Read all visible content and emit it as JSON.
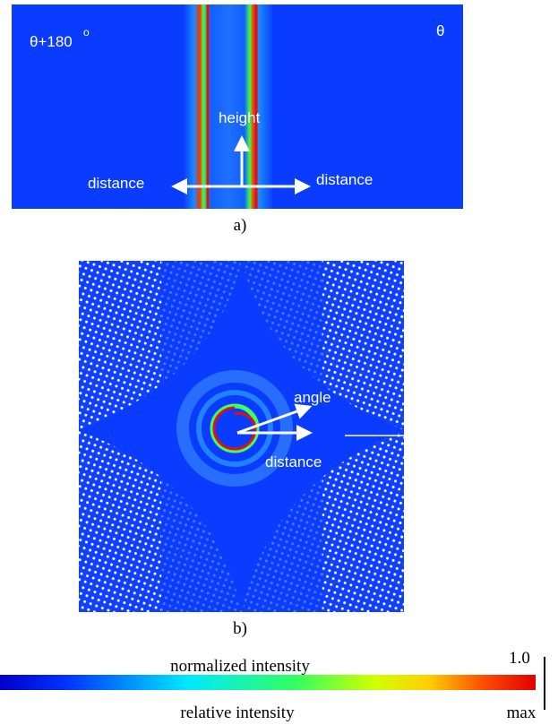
{
  "panel_a": {
    "left_label": "θ+180",
    "left_label_sup": "o",
    "right_label": "θ",
    "up_arrow": "height",
    "left_arrow": "distance",
    "right_arrow": "distance",
    "caption": "a)"
  },
  "panel_b": {
    "angle_arrow": "angle",
    "distance_arrow": "distance",
    "caption": "b)"
  },
  "colorbar": {
    "top_label": "normalized intensity",
    "top_right": "1.0",
    "bottom_label": "relative intensity",
    "bottom_right": "max"
  }
}
